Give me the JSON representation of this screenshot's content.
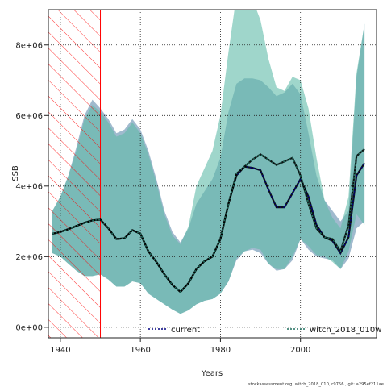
{
  "chart_data": {
    "type": "area",
    "xlabel": "Years",
    "ylabel": "SSB",
    "xlim": [
      1937,
      2019
    ],
    "ylim": [
      -300000,
      9000000
    ],
    "x_ticks": [
      1940,
      1960,
      1980,
      2000
    ],
    "x_tick_labels": [
      "1940",
      "1960",
      "1980",
      "2000"
    ],
    "y_ticks": [
      0,
      2000000,
      4000000,
      6000000,
      8000000
    ],
    "y_tick_labels": [
      "0e+00",
      "2e+06",
      "4e+06",
      "6e+06",
      "8e+06"
    ],
    "grid": true,
    "hatched_period": [
      1937,
      1950
    ],
    "legend_position": "bottom",
    "footnote": "stockassessment.org, witch_2018_010, r9756 , git: a295ef211ae",
    "colors": {
      "band_current": "#8FAEC6",
      "band_witch": "#5FBBA8",
      "line_current": "#000080",
      "line_witch": "#1F6F5F",
      "hatch": "#ff0000",
      "grid": "#222222"
    },
    "series": [
      {
        "name": "current",
        "x": [
          1938,
          1940,
          1942,
          1944,
          1946,
          1948,
          1950,
          1952,
          1954,
          1956,
          1958,
          1960,
          1962,
          1964,
          1966,
          1968,
          1970,
          1972,
          1974,
          1976,
          1978,
          1980,
          1982,
          1984,
          1986,
          1988,
          1990,
          1992,
          1994,
          1996,
          1998,
          2000,
          2002,
          2004,
          2006,
          2008,
          2010,
          2012,
          2014,
          2016
        ],
        "y": [
          2650000,
          2700000,
          2780000,
          2870000,
          2960000,
          3030000,
          3050000,
          2800000,
          2500000,
          2520000,
          2750000,
          2650000,
          2150000,
          1850000,
          1500000,
          1200000,
          1000000,
          1250000,
          1650000,
          1870000,
          2000000,
          2500000,
          3500000,
          4300000,
          4550000,
          4520000,
          4450000,
          3900000,
          3400000,
          3400000,
          3800000,
          4200000,
          3700000,
          2900000,
          2550000,
          2450000,
          2100000,
          2550000,
          4300000,
          4650000
        ],
        "lower": [
          2100000,
          2000000,
          1800000,
          1600000,
          1450000,
          1450000,
          1500000,
          1350000,
          1150000,
          1150000,
          1300000,
          1250000,
          950000,
          800000,
          650000,
          500000,
          380000,
          480000,
          650000,
          750000,
          800000,
          950000,
          1300000,
          1900000,
          2150000,
          2200000,
          2100000,
          1800000,
          1600000,
          1650000,
          1900000,
          2500000,
          2200000,
          2000000,
          1950000,
          1900000,
          1650000,
          1950000,
          2800000,
          3000000
        ],
        "upper": [
          3300000,
          3700000,
          4300000,
          5100000,
          6000000,
          6450000,
          6200000,
          5900000,
          5500000,
          5600000,
          5900000,
          5600000,
          5000000,
          4200000,
          3300000,
          2700000,
          2400000,
          2800000,
          3500000,
          3850000,
          4200000,
          4800000,
          6100000,
          6900000,
          7050000,
          7050000,
          7000000,
          6800000,
          6550000,
          6650000,
          6900000,
          6600000,
          5500000,
          4300000,
          3600000,
          3300000,
          3000000,
          3300000,
          7100000,
          8600000
        ]
      },
      {
        "name": "witch_2018_010w",
        "x": [
          1938,
          1940,
          1942,
          1944,
          1946,
          1948,
          1950,
          1952,
          1954,
          1956,
          1958,
          1960,
          1962,
          1964,
          1966,
          1968,
          1970,
          1972,
          1974,
          1976,
          1978,
          1980,
          1982,
          1984,
          1986,
          1988,
          1990,
          1992,
          1994,
          1996,
          1998,
          2000,
          2002,
          2004,
          2006,
          2008,
          2010,
          2012,
          2014,
          2016
        ],
        "y": [
          2650000,
          2700000,
          2780000,
          2870000,
          2960000,
          3030000,
          3050000,
          2800000,
          2500000,
          2520000,
          2750000,
          2650000,
          2150000,
          1850000,
          1500000,
          1200000,
          1000000,
          1250000,
          1650000,
          1870000,
          2000000,
          2500000,
          3500000,
          4350000,
          4550000,
          4750000,
          4900000,
          4750000,
          4600000,
          4700000,
          4800000,
          4300000,
          3500000,
          2800000,
          2550000,
          2500000,
          2150000,
          2900000,
          4850000,
          5050000
        ],
        "lower": [
          2100000,
          2000000,
          1800000,
          1600000,
          1450000,
          1450000,
          1500000,
          1350000,
          1150000,
          1150000,
          1300000,
          1250000,
          950000,
          800000,
          650000,
          500000,
          380000,
          480000,
          650000,
          750000,
          800000,
          950000,
          1300000,
          1950000,
          2150000,
          2250000,
          2200000,
          1800000,
          1650000,
          1650000,
          2000000,
          2500000,
          2300000,
          2050000,
          2000000,
          1850000,
          1650000,
          2150000,
          3200000,
          2900000
        ],
        "upper": [
          3300000,
          3700000,
          4300000,
          5000000,
          5900000,
          6300000,
          6100000,
          5800000,
          5400000,
          5500000,
          5800000,
          5500000,
          4900000,
          4100000,
          3200000,
          2600000,
          2350000,
          2850000,
          4000000,
          4500000,
          5000000,
          6000000,
          7800000,
          9400000,
          9800000,
          9300000,
          8700000,
          7600000,
          6800000,
          6700000,
          7100000,
          7000000,
          6200000,
          4800000,
          3600000,
          3100000,
          2800000,
          3700000,
          7200000,
          8600000
        ]
      }
    ]
  }
}
